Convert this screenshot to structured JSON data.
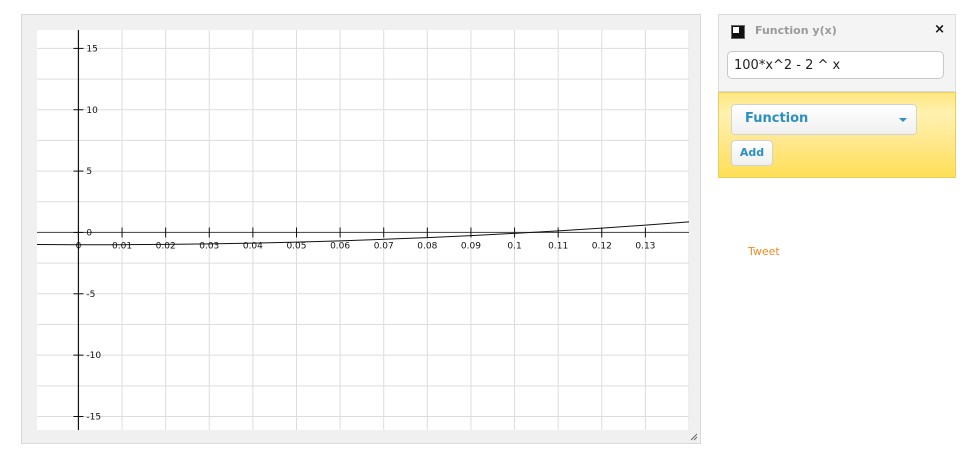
{
  "function_card": {
    "title": "Function y(x)",
    "close_symbol": "×",
    "expression": "100*x^2 - 2 ^ x",
    "swatch_color": "#111111"
  },
  "add_panel": {
    "type_selected": "Function",
    "add_label": "Add"
  },
  "tweet_label": "Tweet",
  "colors": {
    "accent": "#2b8fc0",
    "tweet": "#f08a24",
    "panel_yellow": "#ffe680"
  },
  "chart_data": {
    "type": "line",
    "title": "",
    "xlabel": "",
    "ylabel": "",
    "xlim": [
      -0.0095,
      0.14
    ],
    "ylim": [
      -16.1,
      16.5
    ],
    "grid": true,
    "x_ticks": [
      0,
      0.01,
      0.02,
      0.03,
      0.04,
      0.05,
      0.06,
      0.07,
      0.08,
      0.09,
      0.1,
      0.11,
      0.12,
      0.13
    ],
    "x_tick_labels": [
      "0",
      "0.01",
      "0.02",
      "0.03",
      "0.04",
      "0.05",
      "0.06",
      "0.07",
      "0.08",
      "0.09",
      "0.1",
      "0.11",
      "0.12",
      "0.13"
    ],
    "y_ticks": [
      -15,
      -10,
      -5,
      0,
      5,
      10,
      15
    ],
    "y_tick_labels": [
      "-15",
      "-10",
      "-5",
      "0",
      "5",
      "10",
      "15"
    ],
    "series": [
      {
        "expression": "100*x^2 - 2 ^ x",
        "color": "#111111",
        "x": [
          -0.0095,
          0,
          0.01,
          0.02,
          0.03,
          0.04,
          0.05,
          0.06,
          0.07,
          0.08,
          0.09,
          0.1,
          0.11,
          0.12,
          0.13,
          0.14
        ],
        "y": [
          -0.984,
          -1.0,
          -0.997,
          -0.974,
          -0.931,
          -0.868,
          -0.785,
          -0.682,
          -0.559,
          -0.417,
          -0.254,
          -0.072,
          0.131,
          0.353,
          0.596,
          0.858
        ]
      }
    ]
  }
}
